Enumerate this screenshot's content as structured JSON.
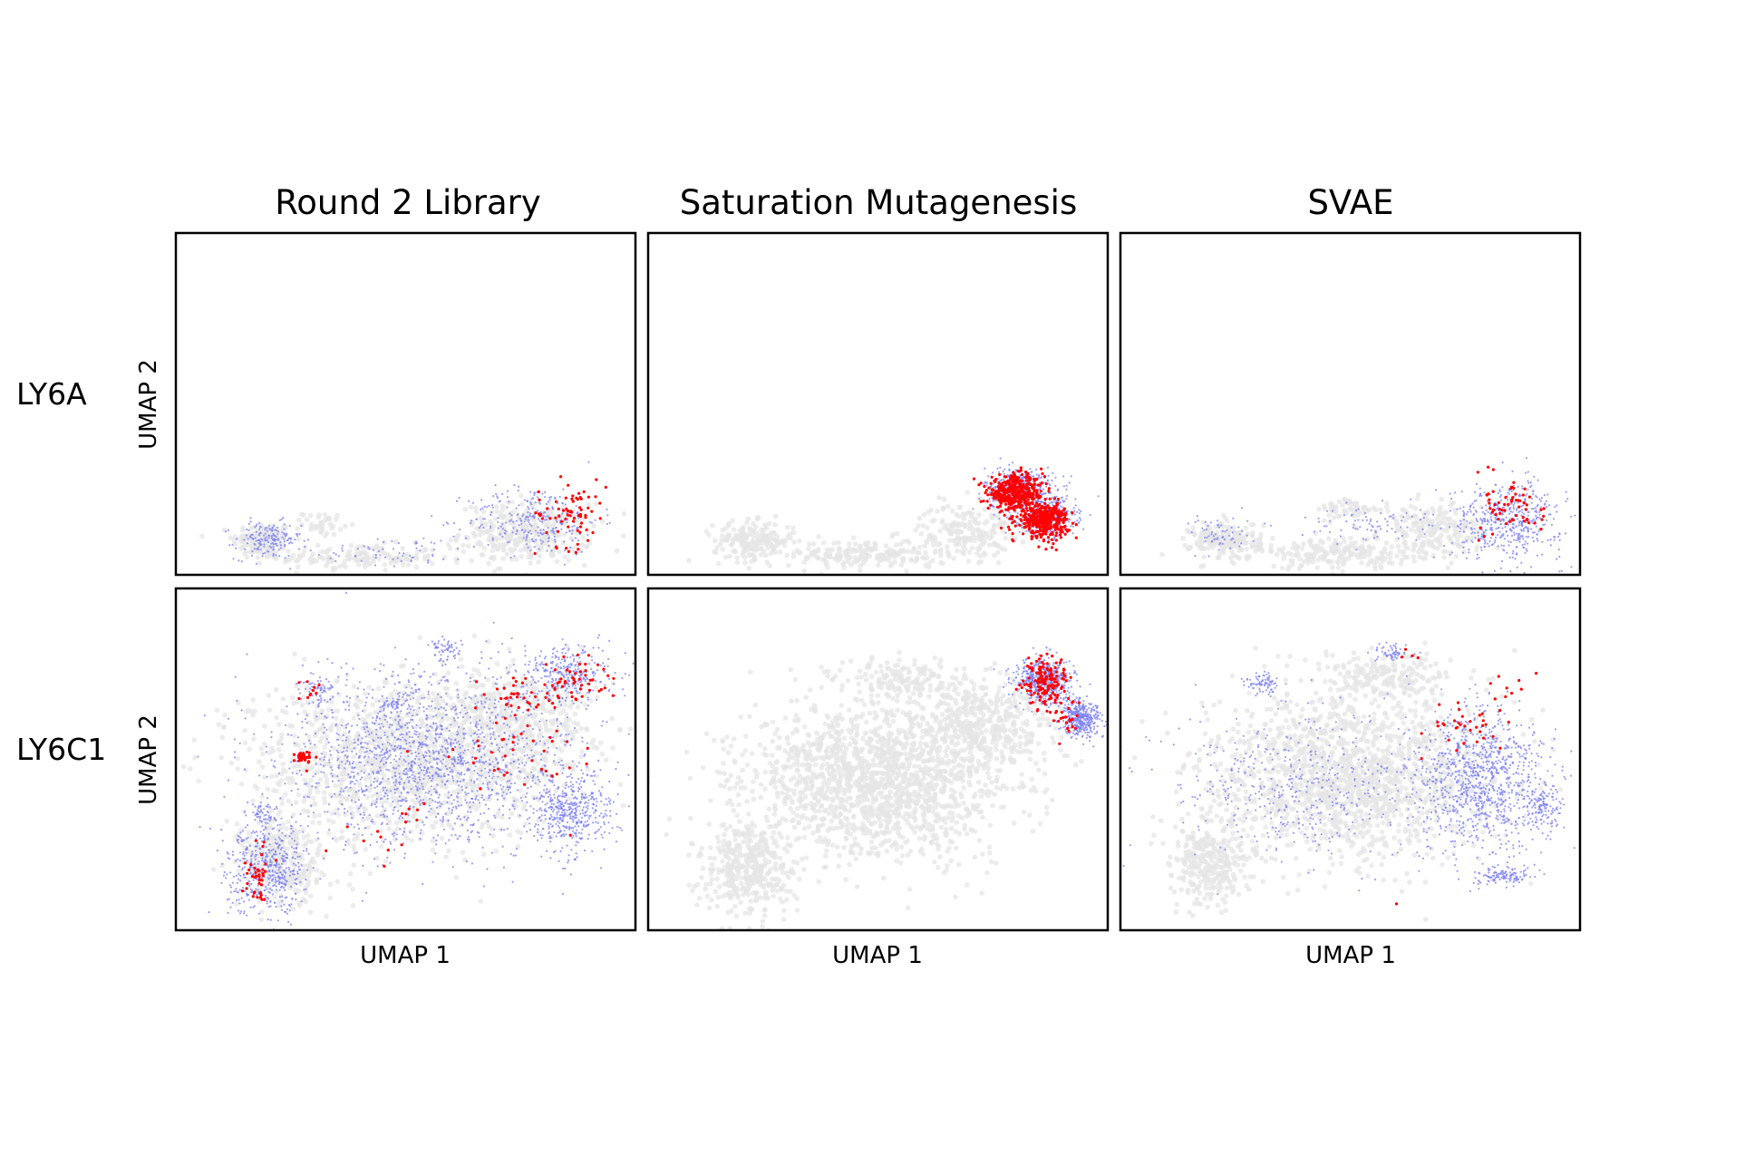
{
  "figure": {
    "column_titles": [
      "Round 2 Library",
      "Saturation Mutagenesis",
      "SVAE"
    ],
    "row_labels": [
      "LY6A",
      "LY6C1"
    ],
    "xlabel": "UMAP 1",
    "ylabel": "UMAP 2"
  },
  "colors": {
    "background_points": "#e6e6e6",
    "library_points": "#7b7ff0",
    "top_variants": "#ff0000"
  },
  "chart_data": [
    {
      "type": "scatter",
      "row": "LY6A",
      "column": "Round 2 Library",
      "xlabel": "UMAP 1",
      "ylabel": "UMAP 2",
      "ticks": false,
      "xlim": [
        0,
        10
      ],
      "ylim": [
        0,
        10
      ],
      "series": [
        {
          "role": "background",
          "color": "#e6e6e6",
          "clusters": [
            [
              1.9,
              1.0,
              0.6,
              0.5,
              150
            ],
            [
              4.0,
              0.5,
              1.6,
              0.35,
              150
            ],
            [
              7.6,
              1.2,
              1.3,
              0.8,
              320
            ],
            [
              3.2,
              1.5,
              0.4,
              0.3,
              40
            ]
          ]
        },
        {
          "role": "library",
          "color": "#7b7ff0",
          "clusters": [
            [
              2.0,
              1.0,
              0.65,
              0.5,
              170
            ],
            [
              7.8,
              1.6,
              1.3,
              0.9,
              280
            ],
            [
              4.8,
              0.7,
              1.5,
              0.4,
              60
            ]
          ]
        },
        {
          "role": "top",
          "color": "#ff0000",
          "clusters": [
            [
              8.6,
              1.8,
              0.7,
              0.9,
              70
            ]
          ]
        }
      ]
    },
    {
      "type": "scatter",
      "row": "LY6A",
      "column": "Saturation Mutagenesis",
      "xlabel": "UMAP 1",
      "ylabel": "UMAP 2",
      "ticks": false,
      "xlim": [
        0,
        10
      ],
      "ylim": [
        0,
        10
      ],
      "series": [
        {
          "role": "background",
          "color": "#e6e6e6",
          "clusters": [
            [
              2.3,
              1.0,
              0.8,
              0.5,
              200
            ],
            [
              4.8,
              0.6,
              1.6,
              0.4,
              200
            ],
            [
              6.9,
              1.3,
              0.9,
              0.7,
              180
            ]
          ]
        },
        {
          "role": "library",
          "color": "#7b7ff0",
          "clusters": [
            [
              8.1,
              2.5,
              0.7,
              0.6,
              450
            ],
            [
              8.7,
              1.7,
              0.55,
              0.5,
              400
            ]
          ]
        },
        {
          "role": "top",
          "color": "#ff0000",
          "clusters": [
            [
              8.0,
              2.4,
              0.55,
              0.45,
              420
            ],
            [
              8.6,
              1.6,
              0.5,
              0.45,
              380
            ]
          ]
        }
      ]
    },
    {
      "type": "scatter",
      "row": "LY6A",
      "column": "SVAE",
      "xlabel": "UMAP 1",
      "ylabel": "UMAP 2",
      "ticks": false,
      "xlim": [
        0,
        10
      ],
      "ylim": [
        0,
        10
      ],
      "series": [
        {
          "role": "background",
          "color": "#e6e6e6",
          "clusters": [
            [
              2.3,
              1.0,
              0.7,
              0.5,
              200
            ],
            [
              4.8,
              0.6,
              1.6,
              0.4,
              200
            ],
            [
              6.8,
              1.3,
              1.0,
              0.7,
              200
            ],
            [
              5.0,
              1.9,
              0.6,
              0.3,
              60
            ]
          ]
        },
        {
          "role": "library",
          "color": "#7b7ff0",
          "clusters": [
            [
              8.4,
              1.6,
              1.1,
              1.0,
              500
            ],
            [
              2.2,
              1.2,
              0.6,
              0.5,
              60
            ],
            [
              5.2,
              1.5,
              1.2,
              0.5,
              80
            ]
          ]
        },
        {
          "role": "top",
          "color": "#ff0000",
          "clusters": [
            [
              8.6,
              2.0,
              0.6,
              0.9,
              60
            ]
          ]
        }
      ]
    },
    {
      "type": "scatter",
      "row": "LY6C1",
      "column": "Round 2 Library",
      "xlabel": "UMAP 1",
      "ylabel": "UMAP 2",
      "ticks": false,
      "xlim": [
        0,
        10
      ],
      "ylim": [
        0,
        10
      ],
      "series": [
        {
          "role": "background",
          "color": "#e6e6e6",
          "clusters": [
            [
              5.0,
              5.0,
              3.0,
              2.2,
              1200
            ],
            [
              2.3,
              2.0,
              0.9,
              1.2,
              300
            ],
            [
              7.5,
              6.0,
              1.5,
              1.5,
              400
            ]
          ]
        },
        {
          "role": "library",
          "color": "#7b7ff0",
          "clusters": [
            [
              5.5,
              5.0,
              2.8,
              2.3,
              1600
            ],
            [
              2.0,
              1.8,
              0.8,
              1.2,
              500
            ],
            [
              8.6,
              3.5,
              0.8,
              1.1,
              450
            ],
            [
              8.5,
              7.5,
              0.9,
              0.8,
              300
            ],
            [
              5.9,
              8.2,
              0.3,
              0.3,
              60
            ],
            [
              4.8,
              6.6,
              0.3,
              0.25,
              40
            ],
            [
              3.1,
              7.1,
              0.4,
              0.4,
              60
            ],
            [
              1.9,
              3.4,
              0.3,
              0.3,
              50
            ]
          ]
        },
        {
          "role": "top",
          "color": "#ff0000",
          "clusters": [
            [
              8.7,
              7.3,
              0.6,
              0.6,
              50
            ],
            [
              7.4,
              6.8,
              0.5,
              0.6,
              35
            ],
            [
              2.8,
              5.1,
              0.2,
              0.2,
              30
            ],
            [
              1.8,
              1.5,
              0.25,
              0.9,
              40
            ],
            [
              7.5,
              5.2,
              1.5,
              1.2,
              40
            ],
            [
              3.0,
              7.0,
              0.3,
              0.3,
              10
            ],
            [
              4.5,
              3.0,
              1.5,
              1.2,
              15
            ]
          ]
        }
      ]
    },
    {
      "type": "scatter",
      "row": "LY6C1",
      "column": "Saturation Mutagenesis",
      "xlabel": "UMAP 1",
      "ylabel": "UMAP 2",
      "ticks": false,
      "xlim": [
        0,
        10
      ],
      "ylim": [
        0,
        10
      ],
      "series": [
        {
          "role": "background",
          "color": "#e6e6e6",
          "clusters": [
            [
              5.0,
              4.4,
              2.6,
              2.0,
              1600
            ],
            [
              2.2,
              1.8,
              0.9,
              1.3,
              400
            ],
            [
              7.2,
              6.0,
              1.3,
              1.3,
              400
            ],
            [
              5.5,
              7.3,
              1.3,
              0.6,
              150
            ]
          ]
        },
        {
          "role": "library",
          "color": "#7b7ff0",
          "clusters": [
            [
              8.6,
              7.3,
              0.55,
              0.6,
              500
            ],
            [
              9.4,
              6.2,
              0.4,
              0.5,
              400
            ]
          ]
        },
        {
          "role": "top",
          "color": "#ff0000",
          "clusters": [
            [
              8.7,
              7.2,
              0.45,
              0.7,
              150
            ],
            [
              9.1,
              6.1,
              0.35,
              0.5,
              20
            ]
          ]
        }
      ]
    },
    {
      "type": "scatter",
      "row": "LY6C1",
      "column": "SVAE",
      "xlabel": "UMAP 1",
      "ylabel": "UMAP 2",
      "ticks": false,
      "xlim": [
        0,
        10
      ],
      "ylim": [
        0,
        10
      ],
      "series": [
        {
          "role": "background",
          "color": "#e6e6e6",
          "clusters": [
            [
              5.0,
              4.5,
              2.9,
              2.1,
              1500
            ],
            [
              2.0,
              2.0,
              0.8,
              1.1,
              300
            ],
            [
              5.8,
              7.4,
              1.5,
              0.6,
              200
            ]
          ]
        },
        {
          "role": "library",
          "color": "#7b7ff0",
          "clusters": [
            [
              7.8,
              4.4,
              1.3,
              1.9,
              1000
            ],
            [
              3.8,
              4.3,
              2.5,
              2.0,
              450
            ],
            [
              3.1,
              7.2,
              0.35,
              0.3,
              80
            ],
            [
              5.9,
              8.1,
              0.4,
              0.25,
              60
            ],
            [
              8.3,
              1.6,
              0.6,
              0.3,
              120
            ],
            [
              9.2,
              3.6,
              0.35,
              0.6,
              120
            ]
          ]
        },
        {
          "role": "top",
          "color": "#ff0000",
          "clusters": [
            [
              7.6,
              6.0,
              0.9,
              0.7,
              35
            ],
            [
              6.3,
              8.2,
              0.2,
              0.2,
              4
            ],
            [
              6.0,
              0.8,
              0.1,
              0.1,
              1
            ],
            [
              8.5,
              7.2,
              0.5,
              0.4,
              8
            ]
          ]
        }
      ]
    }
  ]
}
